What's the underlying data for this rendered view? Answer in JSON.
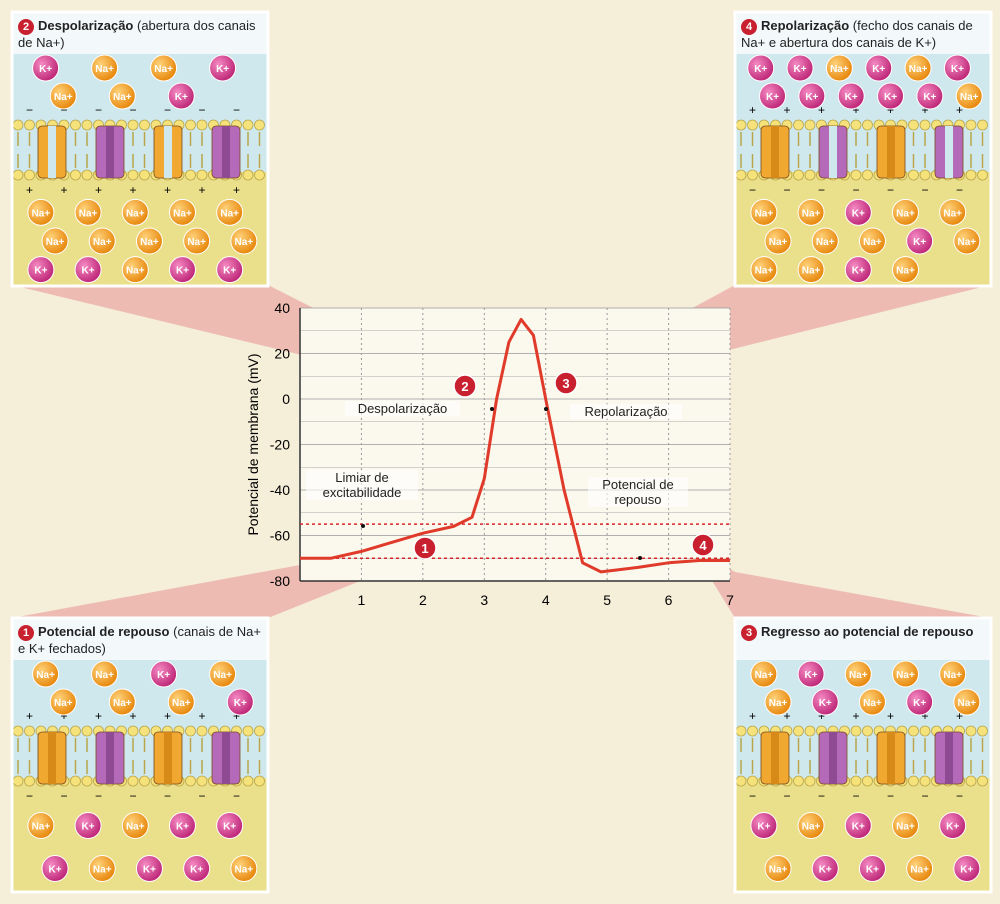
{
  "panels": [
    {
      "number": "2",
      "title": "Despolarização",
      "subtitle": "(abertura dos canais de Na+)",
      "top_ions": [
        "K+",
        "Na+",
        "Na+",
        "K+",
        "Na+",
        "Na+",
        "K+"
      ],
      "bottom_ions": [
        "Na+",
        "Na+",
        "Na+",
        "Na+",
        "Na+",
        "Na+",
        "Na+",
        "Na+",
        "Na+",
        "Na+",
        "K+",
        "K+",
        "Na+",
        "K+",
        "K+"
      ]
    },
    {
      "number": "4",
      "title": "Repolarização",
      "subtitle": "(fecho dos canais de Na+ e abertura dos canais de K+)",
      "top_ions": [
        "K+",
        "K+",
        "Na+",
        "K+",
        "Na+",
        "K+",
        "K+",
        "K+",
        "K+",
        "K+",
        "K+",
        "Na+"
      ],
      "bottom_ions": [
        "Na+",
        "Na+",
        "K+",
        "Na+",
        "Na+",
        "Na+",
        "Na+",
        "Na+",
        "K+",
        "Na+",
        "Na+",
        "Na+",
        "K+",
        "Na+"
      ]
    },
    {
      "number": "1",
      "title": "Potencial de repouso",
      "subtitle": "(canais de Na+ e K+ fechados)",
      "top_ions": [
        "Na+",
        "Na+",
        "K+",
        "Na+",
        "Na+",
        "Na+",
        "Na+",
        "K+"
      ],
      "bottom_ions": [
        "Na+",
        "K+",
        "Na+",
        "K+",
        "K+",
        "K+",
        "Na+",
        "K+",
        "K+",
        "Na+"
      ]
    },
    {
      "number": "3",
      "title": "Regresso ao potencial de repouso",
      "top_ions": [
        "Na+",
        "K+",
        "Na+",
        "Na+",
        "Na+",
        "Na+",
        "K+",
        "Na+",
        "K+",
        "Na+"
      ],
      "bottom_ions": [
        "K+",
        "Na+",
        "K+",
        "Na+",
        "K+",
        "Na+",
        "K+",
        "K+",
        "Na+",
        "K+"
      ]
    }
  ],
  "graph": {
    "y_label": "Potencial de membrana (mV)",
    "ylim": [
      -80,
      40
    ],
    "yticks": [
      -80,
      -60,
      -40,
      -20,
      0,
      20,
      40
    ],
    "xlim": [
      0,
      7
    ],
    "xticks": [
      1,
      2,
      3,
      4,
      5,
      6,
      7
    ],
    "x": [
      0,
      0.5,
      1,
      1.5,
      2,
      2.5,
      2.8,
      3,
      3.2,
      3.4,
      3.6,
      3.8,
      4,
      4.3,
      4.6,
      4.9,
      5.5,
      6,
      6.5,
      7
    ],
    "y": [
      -70,
      -70,
      -67,
      -63,
      -59,
      -56,
      -52,
      -35,
      0,
      25,
      35,
      28,
      0,
      -40,
      -72,
      -76,
      -74,
      -72,
      -71,
      -71
    ],
    "threshold": -55,
    "resting": -70,
    "labels": [
      "Despolarização",
      "Repolarização",
      "Limiar de excitabilidade",
      "Potencial de repouso"
    ],
    "markers": [
      "1",
      "2",
      "3",
      "4"
    ]
  }
}
